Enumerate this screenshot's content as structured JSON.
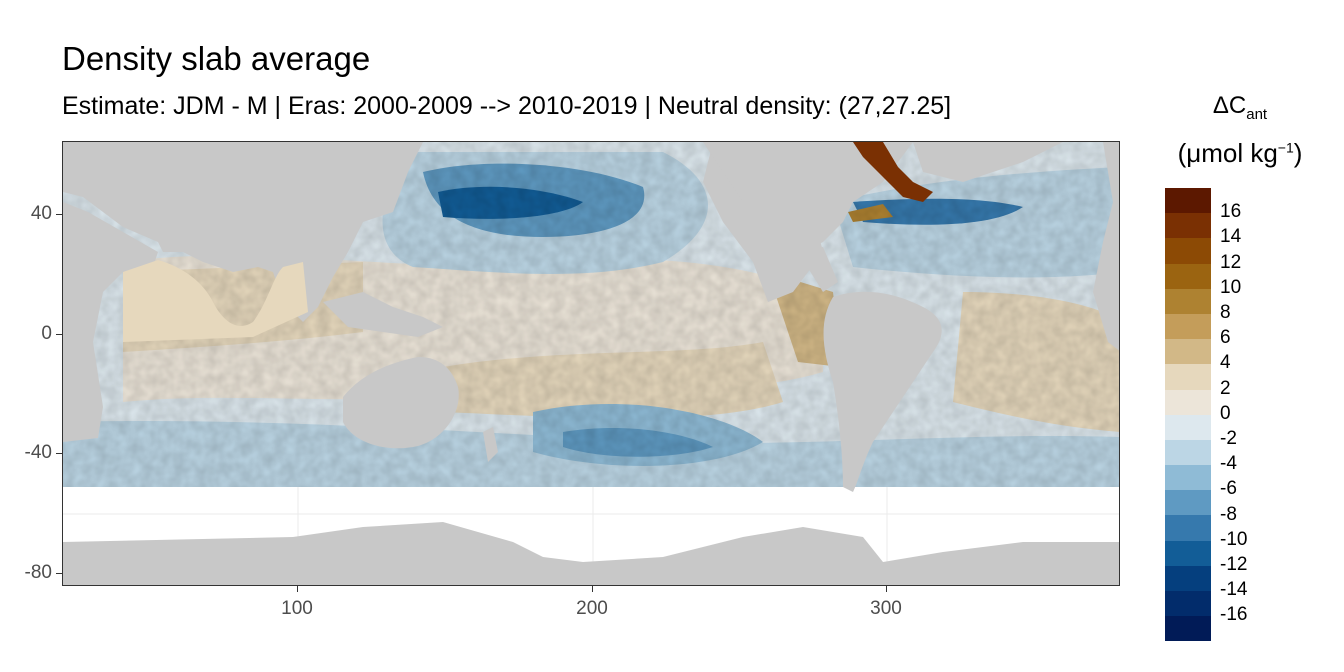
{
  "title": "Density slab average",
  "subtitle": "Estimate: JDM - M | Eras: 2000-2009 --> 2010-2019 | Neutral density: (27,27.25]",
  "legend": {
    "symbol": "ΔC",
    "symbol_subscript": "ant",
    "unit_open": "(μmol kg",
    "unit_superscript": "−1",
    "unit_close": ")",
    "labels": [
      "16",
      "14",
      "12",
      "10",
      "8",
      "6",
      "4",
      "2",
      "0",
      "-2",
      "-4",
      "-6",
      "-8",
      "-10",
      "-12",
      "-14",
      "-16"
    ],
    "colors": [
      "#5c1800",
      "#7a3003",
      "#8c4a05",
      "#9b6411",
      "#ae8231",
      "#c49d5a",
      "#d2b887",
      "#e6d8bd",
      "#ece5d9",
      "#dde8ee",
      "#bcd6e5",
      "#8fbbd6",
      "#5f9ac2",
      "#3679ad",
      "#125d97",
      "#053f7e",
      "#022c6b",
      "#011b57"
    ]
  },
  "axes": {
    "y_ticks": [
      "40",
      "0",
      "-40",
      "-80"
    ],
    "x_ticks": [
      "100",
      "200",
      "300"
    ]
  },
  "map_colors": {
    "land": "#c8c8c8",
    "no_data": "#ffffff",
    "grid": "#ebebeb"
  }
}
